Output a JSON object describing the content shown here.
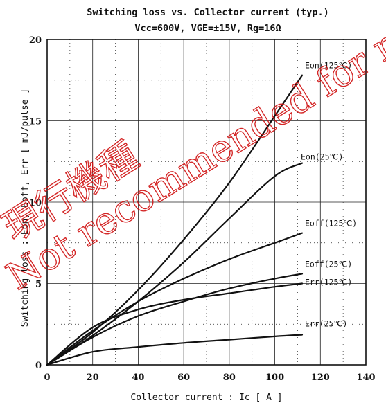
{
  "chart_data": {
    "type": "line",
    "title": "Switching loss  vs.  Collector current  (typ.)",
    "subtitle": "Vcc=600V,  VGE=±15V,  Rg=16Ω",
    "xlabel": "Collector current  :  Ic  [ A ]",
    "ylabel": "Switching loss  :  Eon, Eoff, Err  [ mJ/pulse ]",
    "xlim": [
      0,
      140
    ],
    "ylim": [
      0,
      20
    ],
    "xticks": [
      "0",
      "20",
      "40",
      "60",
      "80",
      "100",
      "120",
      "140"
    ],
    "yticks": [
      "0",
      "5",
      "10",
      "15",
      "20"
    ],
    "grid": true,
    "series": [
      {
        "name": "Eon(125℃)",
        "x": [
          0,
          20,
          40,
          60,
          80,
          100,
          112
        ],
        "y": [
          0,
          2.0,
          4.6,
          7.7,
          11.2,
          15.3,
          17.8
        ]
      },
      {
        "name": "Eon(25℃)",
        "x": [
          0,
          20,
          40,
          60,
          80,
          100,
          112
        ],
        "y": [
          0,
          1.8,
          3.9,
          6.3,
          9.0,
          11.6,
          12.4
        ]
      },
      {
        "name": "Eoff(125℃)",
        "x": [
          0,
          20,
          40,
          60,
          80,
          100,
          112
        ],
        "y": [
          0,
          2.1,
          3.9,
          5.3,
          6.5,
          7.5,
          8.1
        ]
      },
      {
        "name": "Eoff(25℃)",
        "x": [
          0,
          20,
          40,
          60,
          80,
          100,
          112
        ],
        "y": [
          0,
          1.7,
          3.0,
          3.9,
          4.7,
          5.3,
          5.6
        ]
      },
      {
        "name": "Err(125℃)",
        "x": [
          0,
          20,
          40,
          60,
          80,
          100,
          112
        ],
        "y": [
          0,
          2.3,
          3.4,
          4.0,
          4.4,
          4.8,
          5.0
        ]
      },
      {
        "name": "Err(25℃)",
        "x": [
          0,
          20,
          40,
          60,
          80,
          100,
          112
        ],
        "y": [
          0,
          0.8,
          1.1,
          1.35,
          1.55,
          1.75,
          1.85
        ]
      }
    ]
  },
  "watermark": {
    "line1": "現行機種",
    "line2": "Not recommended for new design."
  },
  "colors": {
    "line": "#111111",
    "grid": "#222222",
    "watermark": "#d01010"
  }
}
